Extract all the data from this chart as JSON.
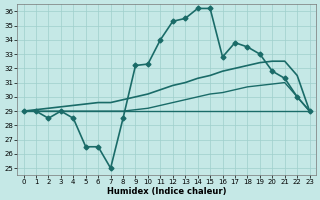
{
  "xlabel": "Humidex (Indice chaleur)",
  "bg_color": "#c5e8e6",
  "grid_color": "#9fcfcc",
  "line_color": "#1a6b68",
  "xlim_min": -0.5,
  "xlim_max": 23.5,
  "ylim_min": 24.5,
  "ylim_max": 36.5,
  "yticks": [
    25,
    26,
    27,
    28,
    29,
    30,
    31,
    32,
    33,
    34,
    35,
    36
  ],
  "xticks": [
    0,
    1,
    2,
    3,
    4,
    5,
    6,
    7,
    8,
    9,
    10,
    11,
    12,
    13,
    14,
    15,
    16,
    17,
    18,
    19,
    20,
    21,
    22,
    23
  ],
  "line1_x": [
    0,
    1,
    2,
    3,
    4,
    5,
    6,
    7,
    8,
    9,
    10,
    11,
    12,
    13,
    14,
    15,
    16,
    17,
    18,
    19,
    20,
    21,
    22,
    23
  ],
  "line1_y": [
    29.0,
    29.0,
    28.5,
    29.0,
    28.5,
    26.5,
    26.5,
    25.0,
    28.5,
    32.2,
    32.3,
    34.0,
    35.3,
    35.5,
    36.2,
    36.2,
    32.8,
    33.8,
    33.5,
    33.0,
    31.8,
    31.3,
    30.0,
    29.0
  ],
  "line2_x": [
    0,
    1,
    2,
    3,
    4,
    5,
    6,
    7,
    8,
    9,
    10,
    11,
    12,
    13,
    14,
    15,
    16,
    17,
    18,
    19,
    20,
    21,
    22,
    23
  ],
  "line2_y": [
    29.0,
    29.1,
    29.2,
    29.3,
    29.4,
    29.5,
    29.6,
    29.6,
    29.8,
    30.0,
    30.2,
    30.5,
    30.8,
    31.0,
    31.3,
    31.5,
    31.8,
    32.0,
    32.2,
    32.4,
    32.5,
    32.5,
    31.5,
    29.0
  ],
  "line3_x": [
    0,
    1,
    2,
    3,
    4,
    5,
    6,
    7,
    8,
    9,
    10,
    11,
    12,
    13,
    14,
    15,
    16,
    17,
    18,
    19,
    20,
    21,
    22,
    23
  ],
  "line3_y": [
    29.0,
    29.0,
    29.0,
    29.0,
    29.0,
    29.0,
    29.0,
    29.0,
    29.0,
    29.1,
    29.2,
    29.4,
    29.6,
    29.8,
    30.0,
    30.2,
    30.3,
    30.5,
    30.7,
    30.8,
    30.9,
    31.0,
    30.0,
    29.0
  ],
  "line4_x": [
    0,
    1,
    2,
    3,
    4,
    5,
    6,
    7,
    8,
    9,
    10,
    11,
    12,
    13,
    14,
    15,
    16,
    17,
    18,
    19,
    20,
    21,
    22,
    23
  ],
  "line4_y": [
    29.0,
    29.0,
    29.0,
    29.0,
    29.0,
    29.0,
    29.0,
    29.0,
    29.0,
    29.0,
    29.0,
    29.0,
    29.0,
    29.0,
    29.0,
    29.0,
    29.0,
    29.0,
    29.0,
    29.0,
    29.0,
    29.0,
    29.0,
    29.0
  ]
}
